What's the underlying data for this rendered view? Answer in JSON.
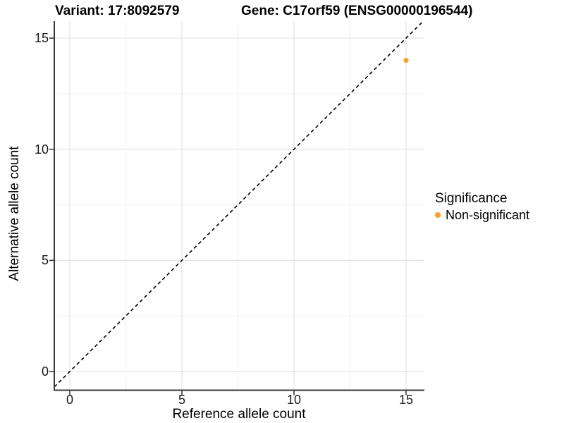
{
  "chart_data": {
    "type": "scatter",
    "title_left": "Variant: 17:8092579",
    "title_right": "Gene: C17orf59 (ENSG00000196544)",
    "xlabel": "Reference allele count",
    "ylabel": "Alternative allele count",
    "xlim": [
      -0.75,
      15.78
    ],
    "ylim": [
      -0.85,
      15.76
    ],
    "x_ticks": [
      0,
      5,
      10,
      15
    ],
    "y_ticks": [
      0,
      5,
      10,
      15
    ],
    "x_minor_ticks": [
      2.5,
      7.5,
      12.5
    ],
    "y_minor_ticks": [
      2.5,
      7.5,
      12.5
    ],
    "grid": "major+minor, white background, light gray lines",
    "series": [
      {
        "name": "Non-significant",
        "color": "#FAA028",
        "points": [
          {
            "x": 15,
            "y": 14
          }
        ]
      }
    ],
    "abline": {
      "slope": 1,
      "intercept": 0,
      "style": "dashed",
      "color": "#000000"
    },
    "legend": {
      "title": "Significance",
      "position": "right",
      "items": [
        {
          "label": "Non-significant",
          "color": "#FAA028"
        }
      ]
    }
  },
  "colors": {
    "background": "#ffffff",
    "grid_major": "#E3E3E3",
    "grid_minor": "#F0F0F0",
    "axis_line": "#3b3b3b",
    "tick_text": "#1a1a1a",
    "point_orange": "#FAA028"
  }
}
